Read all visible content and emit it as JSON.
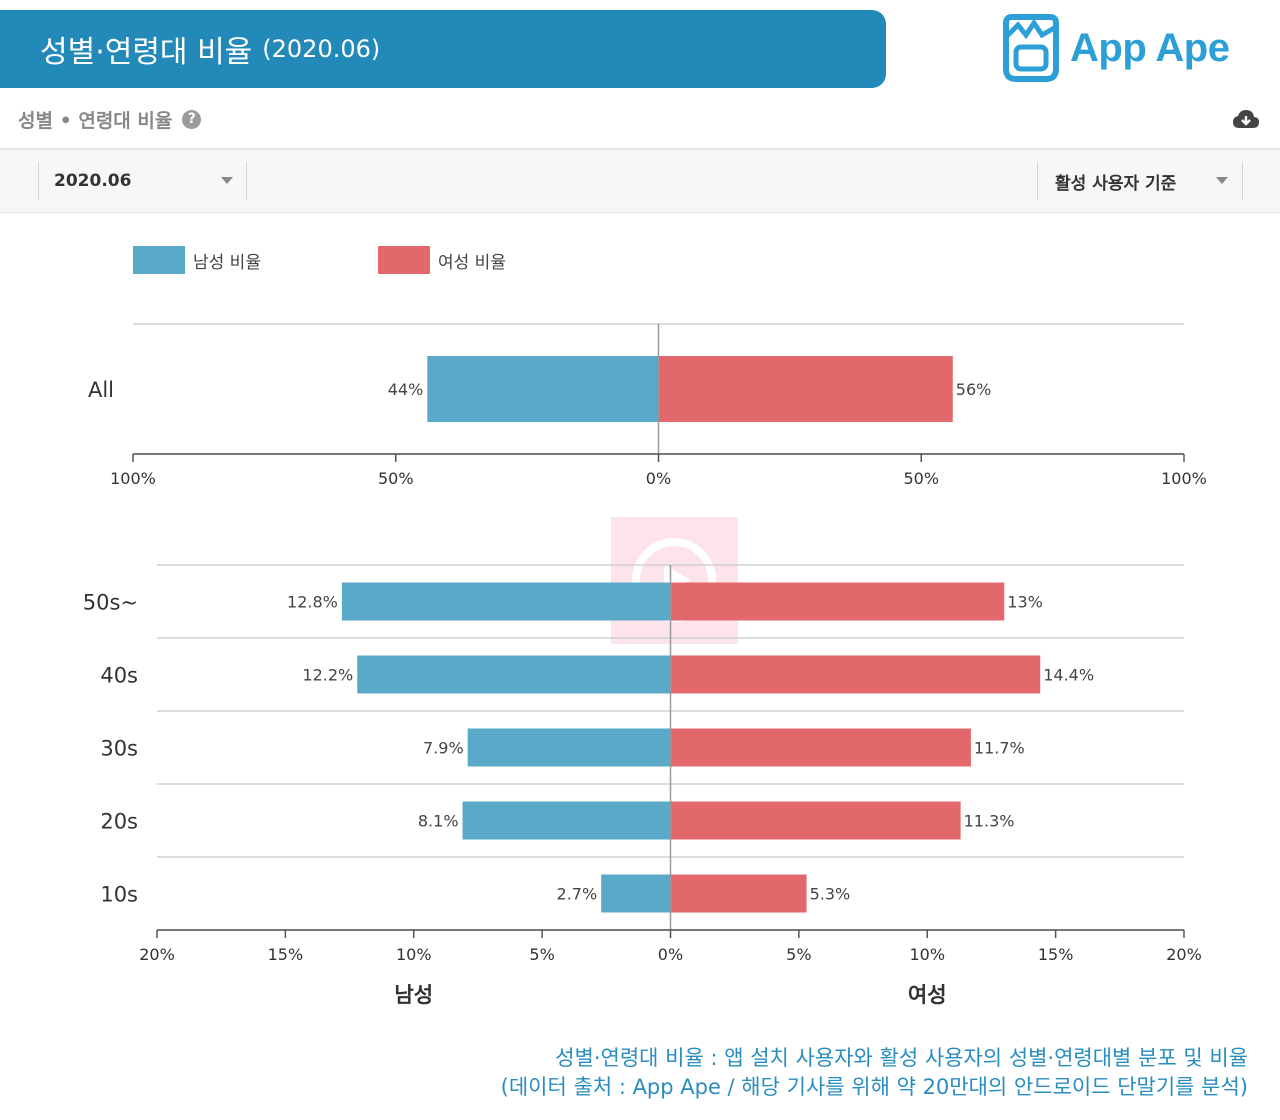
{
  "banner": {
    "title": "성별·연령대 비율",
    "subtitle": "(2020.06)"
  },
  "logo": {
    "text": "App Ape"
  },
  "section": {
    "title": "성별 • 연령대 비율",
    "help_icon": "?"
  },
  "filters": {
    "period": "2020.06",
    "basis": "활성 사용자 기준"
  },
  "legend": {
    "male": "남성 비율",
    "female": "여성 비율"
  },
  "colors": {
    "male": "#5aa9c9",
    "female": "#e2686b",
    "accent": "#2389b8"
  },
  "chart_data": [
    {
      "type": "bar",
      "orientation": "horizontal-diverging",
      "categories": [
        "All"
      ],
      "series": [
        {
          "name": "남성 비율",
          "values": [
            44
          ],
          "labels": [
            "44%"
          ]
        },
        {
          "name": "여성 비율",
          "values": [
            56
          ],
          "labels": [
            "56%"
          ]
        }
      ],
      "xlim": [
        -100,
        100
      ],
      "ticks": [
        "100%",
        "50%",
        "0%",
        "50%",
        "100%"
      ]
    },
    {
      "type": "bar",
      "orientation": "horizontal-diverging",
      "categories": [
        "50s~",
        "40s",
        "30s",
        "20s",
        "10s"
      ],
      "series": [
        {
          "name": "남성 비율",
          "values": [
            12.8,
            12.2,
            7.9,
            8.1,
            2.7
          ],
          "labels": [
            "12.8%",
            "12.2%",
            "7.9%",
            "8.1%",
            "2.7%"
          ]
        },
        {
          "name": "여성 비율",
          "values": [
            13,
            14.4,
            11.7,
            11.3,
            5.3
          ],
          "labels": [
            "13%",
            "14.4%",
            "11.7%",
            "11.3%",
            "5.3%"
          ]
        }
      ],
      "xlim": [
        -20,
        20
      ],
      "ticks": [
        "20%",
        "15%",
        "10%",
        "5%",
        "0%",
        "5%",
        "10%",
        "15%",
        "20%"
      ],
      "xlabel_left": "남성",
      "xlabel_right": "여성"
    }
  ],
  "footer": {
    "line1": "성별·연령대 비율 : 앱 설치 사용자와 활성 사용자의 성별·연령대별 분포 및 비율",
    "line2": "(데이터 출처 : App Ape / 해당 기사를 위해 약 20만대의 안드로이드 단말기를 분석)"
  }
}
